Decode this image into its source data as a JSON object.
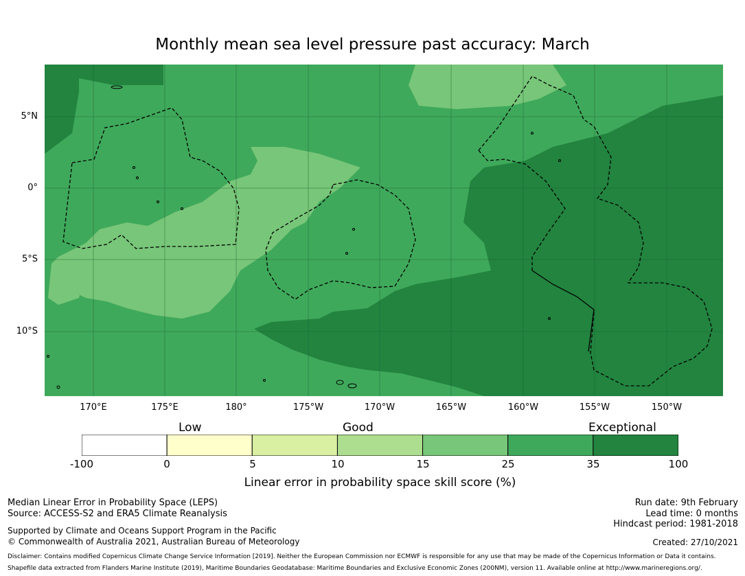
{
  "title": "Monthly mean sea level pressure past accuracy: March",
  "map": {
    "lat_labels": [
      "5°N",
      "0°",
      "5°S",
      "10°S"
    ],
    "lon_labels": [
      "170°E",
      "175°E",
      "180°",
      "175°W",
      "170°W",
      "165°W",
      "160°W",
      "155°W",
      "150°W"
    ],
    "colors": {
      "c35_100": "#22843f",
      "c25_35": "#3fa95b",
      "c15_25": "#78c679",
      "c10_15": "#addd8e",
      "ocean_grid": "#1b5e30",
      "boundary": "#000000"
    }
  },
  "colorbar": {
    "category_labels": [
      "Low",
      "Good",
      "Exceptional"
    ],
    "tick_labels": [
      "-100",
      "0",
      "5",
      "10",
      "15",
      "25",
      "35",
      "100"
    ],
    "segment_colors": [
      "#ffffff",
      "#ffffcc",
      "#d9f0a3",
      "#addd8e",
      "#78c679",
      "#3fa95b",
      "#22843f"
    ],
    "title": "Linear error in probability space skill score (%)"
  },
  "footer": {
    "left_line1": "Median Linear Error in Probability Space (LEPS)",
    "left_line2": "Source: ACCESS-S2 and ERA5 Climate Reanalysis",
    "left_line3": "Supported by Climate and Oceans Support Program in the Pacific",
    "left_line4": "© Commonwealth of Australia 2021, Australian Bureau of Meteorology",
    "run_date": "Run date: 9th February",
    "lead_time": "Lead time: 0 months",
    "hindcast": "Hindcast period: 1981-2018",
    "created": "Created: 27/10/2021",
    "disclaimer": "Disclaimer: Contains modified Copernicus Climate Change Service Information [2019]. Neither the European Commission nor ECMWF is responsible for any use that may be made of the Copernicus Information or Data it contains.",
    "shapefile": "Shapefile data extracted from Flanders Marine Institute (2019), Maritime Boundaries Geodatabase: Maritime Boundaries and Exclusive Economic Zones (200NM), version 11. Available online at http://www.marineregions.org/."
  }
}
